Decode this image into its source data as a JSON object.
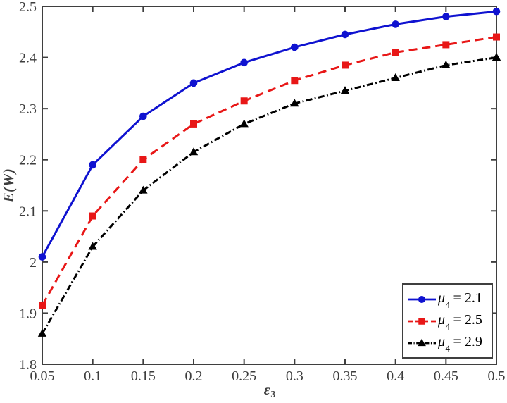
{
  "chart_data": {
    "type": "line",
    "title": "",
    "xlabel": {
      "base": "ε",
      "sub": "3"
    },
    "ylabel": "E(W)",
    "xlim": [
      0.05,
      0.5
    ],
    "ylim": [
      1.8,
      2.5
    ],
    "grid": false,
    "axis_color": "#3f3f3f",
    "tick_label_color": "#3d3d3d",
    "xticks": {
      "values": [
        0.05,
        0.1,
        0.15,
        0.2,
        0.25,
        0.3,
        0.35,
        0.4,
        0.45,
        0.5
      ],
      "labels": [
        "0.05",
        "0.1",
        "0.15",
        "0.2",
        "0.25",
        "0.3",
        "0.35",
        "0.4",
        "0.45",
        "0.5"
      ]
    },
    "yticks": {
      "values": [
        1.8,
        1.9,
        2.0,
        2.1,
        2.2,
        2.3,
        2.4,
        2.5
      ],
      "labels": [
        "1.8",
        "1.9",
        "2",
        "2.1",
        "2.2",
        "2.3",
        "2.4",
        "2.5"
      ]
    },
    "x": [
      0.05,
      0.1,
      0.15,
      0.2,
      0.25,
      0.3,
      0.35,
      0.4,
      0.45,
      0.5
    ],
    "series": [
      {
        "label": {
          "mu": "μ",
          "sub": "4",
          "rest": "= 2.1"
        },
        "color": "#0f12d0",
        "line_style": "solid",
        "marker": "circle",
        "values": [
          2.01,
          2.19,
          2.285,
          2.35,
          2.39,
          2.42,
          2.445,
          2.465,
          2.48,
          2.49
        ]
      },
      {
        "label": {
          "mu": "μ",
          "sub": "4",
          "rest": "= 2.5"
        },
        "color": "#e81717",
        "line_style": "dashed",
        "marker": "square",
        "values": [
          1.915,
          2.09,
          2.2,
          2.27,
          2.315,
          2.355,
          2.385,
          2.41,
          2.425,
          2.44
        ]
      },
      {
        "label": {
          "mu": "μ",
          "sub": "4",
          "rest": "= 2.9"
        },
        "color": "#000000",
        "line_style": "dash-dot",
        "marker": "triangle",
        "values": [
          1.86,
          2.03,
          2.14,
          2.215,
          2.27,
          2.31,
          2.335,
          2.36,
          2.385,
          2.4
        ]
      }
    ],
    "legend_position": "bottom-right"
  }
}
